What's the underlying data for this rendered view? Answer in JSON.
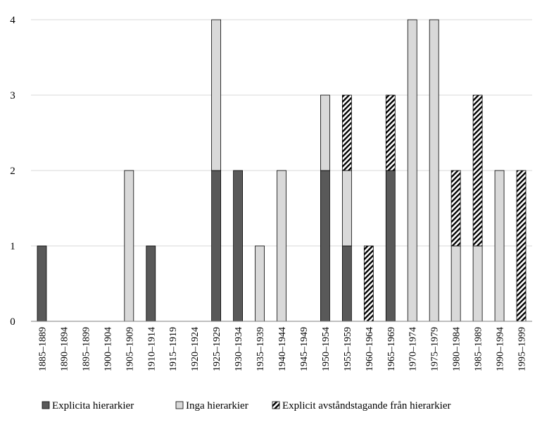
{
  "chart_data": {
    "type": "bar",
    "stacked": true,
    "title": "",
    "xlabel": "",
    "ylabel": "",
    "ylim": [
      0,
      4
    ],
    "yticks": [
      0,
      1,
      2,
      3,
      4
    ],
    "grid": true,
    "legend_position": "bottom",
    "categories": [
      "1885–1889",
      "1890–1894",
      "1895–1899",
      "1900–1904",
      "1905–1909",
      "1910–1914",
      "1915–1919",
      "1920–1924",
      "1925–1929",
      "1930–1934",
      "1935–1939",
      "1940–1944",
      "1945–1949",
      "1950–1954",
      "1955–1959",
      "1960–1964",
      "1965–1969",
      "1970–1974",
      "1975–1979",
      "1980–1984",
      "1985–1989",
      "1990–1994",
      "1995–1999"
    ],
    "series": [
      {
        "name": "Explicita hierarkier",
        "style": "dark",
        "color": "#595959",
        "values": [
          1,
          0,
          0,
          0,
          0,
          1,
          0,
          0,
          2,
          2,
          0,
          0,
          0,
          2,
          1,
          0,
          2,
          0,
          0,
          0,
          0,
          0,
          0
        ]
      },
      {
        "name": "Inga hierarkier",
        "style": "light",
        "color": "#d9d9d9",
        "values": [
          0,
          0,
          0,
          0,
          2,
          0,
          0,
          0,
          2,
          0,
          1,
          2,
          0,
          1,
          1,
          0,
          0,
          4,
          4,
          1,
          1,
          2,
          0
        ]
      },
      {
        "name": "Explicit avståndstagande från hierarkier",
        "style": "hatch",
        "color": "#000000",
        "values": [
          0,
          0,
          0,
          0,
          0,
          0,
          0,
          0,
          0,
          0,
          0,
          0,
          0,
          0,
          1,
          1,
          1,
          0,
          0,
          1,
          2,
          0,
          2
        ]
      }
    ]
  }
}
